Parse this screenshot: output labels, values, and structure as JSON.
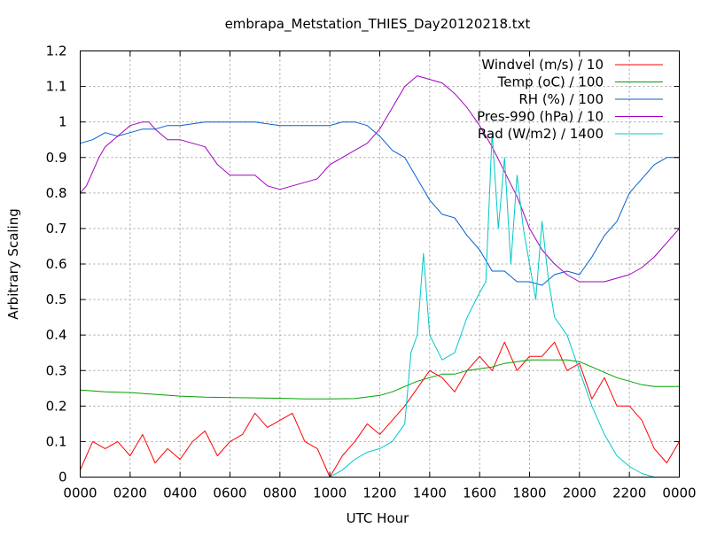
{
  "chart_data": {
    "type": "line",
    "title": "embrapa_Metstation_THIES_Day20120218.txt",
    "xlabel": "UTC Hour",
    "ylabel": "Arbitrary Scaling",
    "xlim": [
      0,
      24
    ],
    "ylim": [
      0,
      1.2
    ],
    "grid": true,
    "legend_position": "top-right",
    "x_tick_labels": [
      "0000",
      "0200",
      "0400",
      "0600",
      "0800",
      "1000",
      "1200",
      "1400",
      "1600",
      "1800",
      "2000",
      "2200",
      "0000"
    ],
    "y_tick_labels": [
      "0",
      "0.1",
      "0.2",
      "0.3",
      "0.4",
      "0.5",
      "0.6",
      "0.7",
      "0.8",
      "0.9",
      "1",
      "1.1",
      "1.2"
    ],
    "series": [
      {
        "name": "Windvel (m/s) / 10",
        "color": "#ff0000",
        "x": [
          0.0,
          0.5,
          1.0,
          1.5,
          2.0,
          2.5,
          3.0,
          3.5,
          4.0,
          4.5,
          5.0,
          5.5,
          6.0,
          6.5,
          7.0,
          7.5,
          8.0,
          8.5,
          9.0,
          9.5,
          10.0,
          10.5,
          11.0,
          11.5,
          12.0,
          12.5,
          13.0,
          13.5,
          14.0,
          14.5,
          15.0,
          15.5,
          16.0,
          16.5,
          17.0,
          17.5,
          18.0,
          18.5,
          19.0,
          19.5,
          20.0,
          20.5,
          21.0,
          21.5,
          22.0,
          22.5,
          23.0,
          23.5,
          24.0
        ],
        "y": [
          0.02,
          0.1,
          0.08,
          0.1,
          0.06,
          0.12,
          0.04,
          0.08,
          0.05,
          0.1,
          0.13,
          0.06,
          0.1,
          0.12,
          0.18,
          0.14,
          0.16,
          0.18,
          0.1,
          0.08,
          0.0,
          0.06,
          0.1,
          0.15,
          0.12,
          0.16,
          0.2,
          0.25,
          0.3,
          0.28,
          0.24,
          0.3,
          0.34,
          0.3,
          0.38,
          0.3,
          0.34,
          0.34,
          0.38,
          0.3,
          0.32,
          0.22,
          0.28,
          0.2,
          0.2,
          0.16,
          0.08,
          0.04,
          0.1
        ]
      },
      {
        "name": "Temp (oC) / 100",
        "color": "#00a000",
        "x": [
          0.0,
          1.0,
          2.0,
          3.0,
          4.0,
          5.0,
          6.0,
          7.0,
          8.0,
          9.0,
          10.0,
          11.0,
          12.0,
          12.5,
          13.0,
          13.5,
          14.0,
          14.5,
          15.0,
          15.5,
          16.0,
          16.5,
          17.0,
          17.5,
          18.0,
          18.5,
          19.0,
          19.5,
          20.0,
          20.5,
          21.0,
          21.5,
          22.0,
          22.5,
          23.0,
          24.0
        ],
        "y": [
          0.245,
          0.24,
          0.238,
          0.233,
          0.228,
          0.225,
          0.224,
          0.223,
          0.222,
          0.22,
          0.22,
          0.221,
          0.23,
          0.24,
          0.255,
          0.27,
          0.28,
          0.29,
          0.29,
          0.3,
          0.305,
          0.31,
          0.32,
          0.325,
          0.33,
          0.33,
          0.33,
          0.33,
          0.325,
          0.31,
          0.295,
          0.28,
          0.27,
          0.26,
          0.255,
          0.255
        ]
      },
      {
        "name": "RH (%) / 100",
        "color": "#0060d0",
        "x": [
          0.0,
          0.5,
          1.0,
          1.5,
          2.0,
          2.5,
          3.0,
          3.5,
          4.0,
          5.0,
          6.0,
          7.0,
          8.0,
          9.0,
          10.0,
          10.5,
          11.0,
          11.5,
          12.0,
          12.5,
          13.0,
          13.5,
          14.0,
          14.5,
          15.0,
          15.5,
          16.0,
          16.5,
          17.0,
          17.5,
          18.0,
          18.5,
          19.0,
          19.5,
          20.0,
          20.5,
          21.0,
          21.5,
          22.0,
          22.5,
          23.0,
          23.5,
          24.0
        ],
        "y": [
          0.94,
          0.95,
          0.97,
          0.96,
          0.97,
          0.98,
          0.98,
          0.99,
          0.99,
          1.0,
          1.0,
          1.0,
          0.99,
          0.99,
          0.99,
          1.0,
          1.0,
          0.99,
          0.96,
          0.92,
          0.9,
          0.84,
          0.78,
          0.74,
          0.73,
          0.68,
          0.64,
          0.58,
          0.58,
          0.55,
          0.55,
          0.54,
          0.57,
          0.58,
          0.57,
          0.62,
          0.68,
          0.72,
          0.8,
          0.84,
          0.88,
          0.9,
          0.9
        ]
      },
      {
        "name": "Pres-990 (hPa) / 10",
        "color": "#a000c0",
        "x": [
          0.0,
          0.25,
          0.5,
          0.75,
          1.0,
          1.5,
          2.0,
          2.5,
          2.75,
          3.0,
          3.5,
          4.0,
          4.5,
          5.0,
          5.5,
          6.0,
          6.5,
          7.0,
          7.5,
          8.0,
          8.5,
          9.0,
          9.5,
          10.0,
          10.5,
          11.0,
          11.5,
          12.0,
          12.5,
          13.0,
          13.5,
          14.0,
          14.5,
          15.0,
          15.5,
          16.0,
          16.5,
          17.0,
          17.5,
          18.0,
          18.5,
          19.0,
          19.5,
          20.0,
          20.5,
          21.0,
          21.5,
          22.0,
          22.5,
          23.0,
          23.5,
          24.0
        ],
        "y": [
          0.8,
          0.82,
          0.86,
          0.9,
          0.93,
          0.96,
          0.99,
          1.0,
          1.0,
          0.98,
          0.95,
          0.95,
          0.94,
          0.93,
          0.88,
          0.85,
          0.85,
          0.85,
          0.82,
          0.81,
          0.82,
          0.83,
          0.84,
          0.88,
          0.9,
          0.92,
          0.94,
          0.98,
          1.04,
          1.1,
          1.13,
          1.12,
          1.11,
          1.08,
          1.04,
          0.99,
          0.93,
          0.86,
          0.79,
          0.7,
          0.64,
          0.6,
          0.57,
          0.55,
          0.55,
          0.55,
          0.56,
          0.57,
          0.59,
          0.62,
          0.66,
          0.7
        ]
      },
      {
        "name": "Rad (W/m2) / 1400",
        "color": "#00c8c8",
        "x": [
          0.0,
          9.5,
          10.0,
          10.5,
          11.0,
          11.5,
          12.0,
          12.5,
          13.0,
          13.25,
          13.5,
          13.75,
          14.0,
          14.5,
          15.0,
          15.5,
          16.0,
          16.25,
          16.5,
          16.75,
          17.0,
          17.25,
          17.5,
          17.75,
          18.0,
          18.25,
          18.5,
          18.75,
          19.0,
          19.5,
          20.0,
          20.5,
          21.0,
          21.5,
          22.0,
          22.5,
          23.0,
          24.0
        ],
        "y": [
          0.0,
          0.0,
          0.0,
          0.02,
          0.05,
          0.07,
          0.08,
          0.1,
          0.15,
          0.35,
          0.4,
          0.63,
          0.4,
          0.33,
          0.35,
          0.45,
          0.52,
          0.55,
          0.97,
          0.7,
          0.9,
          0.6,
          0.85,
          0.7,
          0.6,
          0.5,
          0.72,
          0.56,
          0.45,
          0.4,
          0.3,
          0.2,
          0.12,
          0.06,
          0.03,
          0.01,
          0.0,
          0.0
        ]
      }
    ]
  }
}
